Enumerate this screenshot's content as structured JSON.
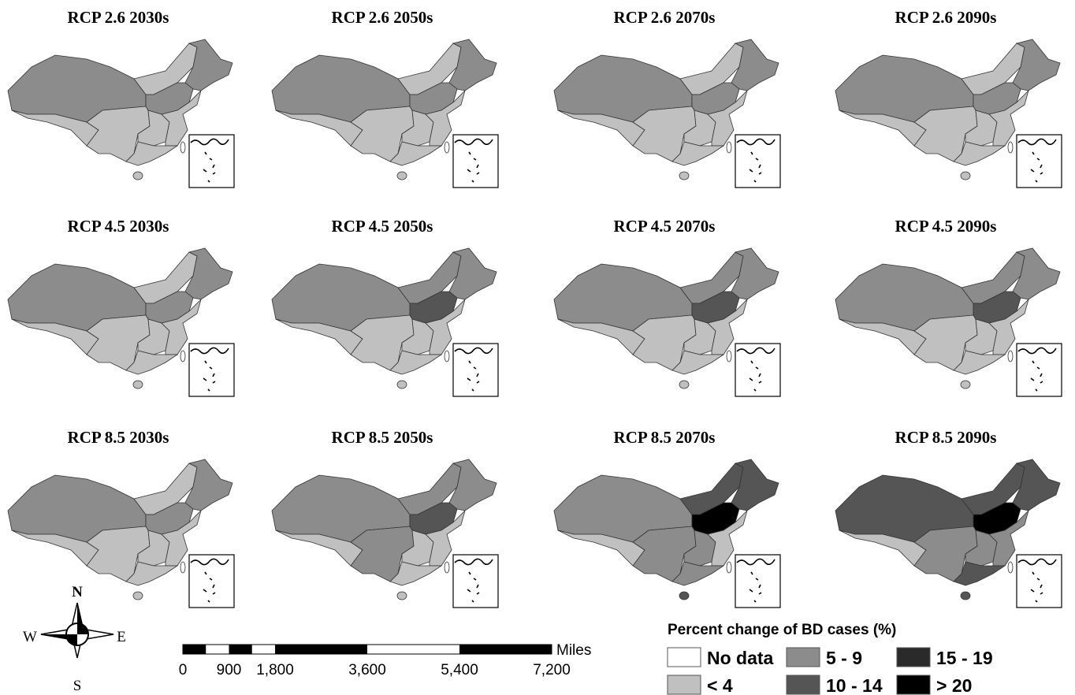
{
  "panels": [
    {
      "title": "RCP 2.6 2030s",
      "region_colors": [
        "#8c8c8c",
        "#c0c0c0",
        "#c0c0c0",
        "#8c8c8c",
        "#8c8c8c",
        "#c0c0c0",
        "#c0c0c0",
        "#c0c0c0",
        "#c0c0c0",
        "#c0c0c0"
      ]
    },
    {
      "title": "RCP 2.6 2050s",
      "region_colors": [
        "#8c8c8c",
        "#c0c0c0",
        "#c0c0c0",
        "#8c8c8c",
        "#8c8c8c",
        "#c0c0c0",
        "#c0c0c0",
        "#c0c0c0",
        "#c0c0c0",
        "#c0c0c0"
      ]
    },
    {
      "title": "RCP 2.6 2070s",
      "region_colors": [
        "#8c8c8c",
        "#c0c0c0",
        "#c0c0c0",
        "#8c8c8c",
        "#8c8c8c",
        "#c0c0c0",
        "#c0c0c0",
        "#c0c0c0",
        "#c0c0c0",
        "#c0c0c0"
      ]
    },
    {
      "title": "RCP 2.6 2090s",
      "region_colors": [
        "#8c8c8c",
        "#c0c0c0",
        "#c0c0c0",
        "#8c8c8c",
        "#8c8c8c",
        "#c0c0c0",
        "#c0c0c0",
        "#c0c0c0",
        "#c0c0c0",
        "#c0c0c0"
      ]
    },
    {
      "title": "RCP 4.5 2030s",
      "region_colors": [
        "#8c8c8c",
        "#c0c0c0",
        "#c0c0c0",
        "#8c8c8c",
        "#8c8c8c",
        "#c0c0c0",
        "#c0c0c0",
        "#c0c0c0",
        "#c0c0c0",
        "#c0c0c0"
      ]
    },
    {
      "title": "RCP 4.5 2050s",
      "region_colors": [
        "#8c8c8c",
        "#c0c0c0",
        "#8c8c8c",
        "#8c8c8c",
        "#555555",
        "#c0c0c0",
        "#c0c0c0",
        "#c0c0c0",
        "#c0c0c0",
        "#c0c0c0"
      ]
    },
    {
      "title": "RCP 4.5 2070s",
      "region_colors": [
        "#8c8c8c",
        "#c0c0c0",
        "#8c8c8c",
        "#8c8c8c",
        "#555555",
        "#c0c0c0",
        "#c0c0c0",
        "#c0c0c0",
        "#c0c0c0",
        "#c0c0c0"
      ]
    },
    {
      "title": "RCP 4.5 2090s",
      "region_colors": [
        "#8c8c8c",
        "#c0c0c0",
        "#8c8c8c",
        "#8c8c8c",
        "#555555",
        "#c0c0c0",
        "#c0c0c0",
        "#c0c0c0",
        "#c0c0c0",
        "#c0c0c0"
      ]
    },
    {
      "title": "RCP 8.5 2030s",
      "region_colors": [
        "#8c8c8c",
        "#c0c0c0",
        "#c0c0c0",
        "#8c8c8c",
        "#8c8c8c",
        "#c0c0c0",
        "#c0c0c0",
        "#c0c0c0",
        "#c0c0c0",
        "#c0c0c0"
      ]
    },
    {
      "title": "RCP 8.5 2050s",
      "region_colors": [
        "#8c8c8c",
        "#c0c0c0",
        "#8c8c8c",
        "#8c8c8c",
        "#555555",
        "#8c8c8c",
        "#c0c0c0",
        "#c0c0c0",
        "#c0c0c0",
        "#c0c0c0"
      ]
    },
    {
      "title": "RCP 8.5 2070s",
      "region_colors": [
        "#8c8c8c",
        "#c0c0c0",
        "#555555",
        "#555555",
        "#000000",
        "#8c8c8c",
        "#8c8c8c",
        "#c0c0c0",
        "#8c8c8c",
        "#555555"
      ]
    },
    {
      "title": "RCP 8.5 2090s",
      "region_colors": [
        "#555555",
        "#c0c0c0",
        "#555555",
        "#555555",
        "#000000",
        "#8c8c8c",
        "#8c8c8c",
        "#8c8c8c",
        "#555555",
        "#555555"
      ]
    }
  ],
  "compass": {
    "n": "N",
    "w": "W",
    "e": "E",
    "s": "S"
  },
  "scale_bar": {
    "unit": "Miles",
    "ticks": [
      0,
      900,
      {
        "value": 1800,
        "label": "1,800"
      },
      {
        "value": 3600,
        "label": "3,600"
      },
      {
        "value": 5400,
        "label": "5,400"
      },
      {
        "value": 7200,
        "label": "7,200"
      }
    ]
  },
  "legend": {
    "title": "Percent change of BD cases (%)",
    "items": [
      {
        "label": "No data",
        "color": "#ffffff"
      },
      {
        "label": "5 - 9",
        "color": "#8c8c8c"
      },
      {
        "label": "15 - 19",
        "color": "#2a2a2a"
      },
      {
        "label": "< 4",
        "color": "#c0c0c0"
      },
      {
        "label": "10 - 14",
        "color": "#555555"
      },
      {
        "label": "> 20",
        "color": "#000000"
      }
    ]
  }
}
